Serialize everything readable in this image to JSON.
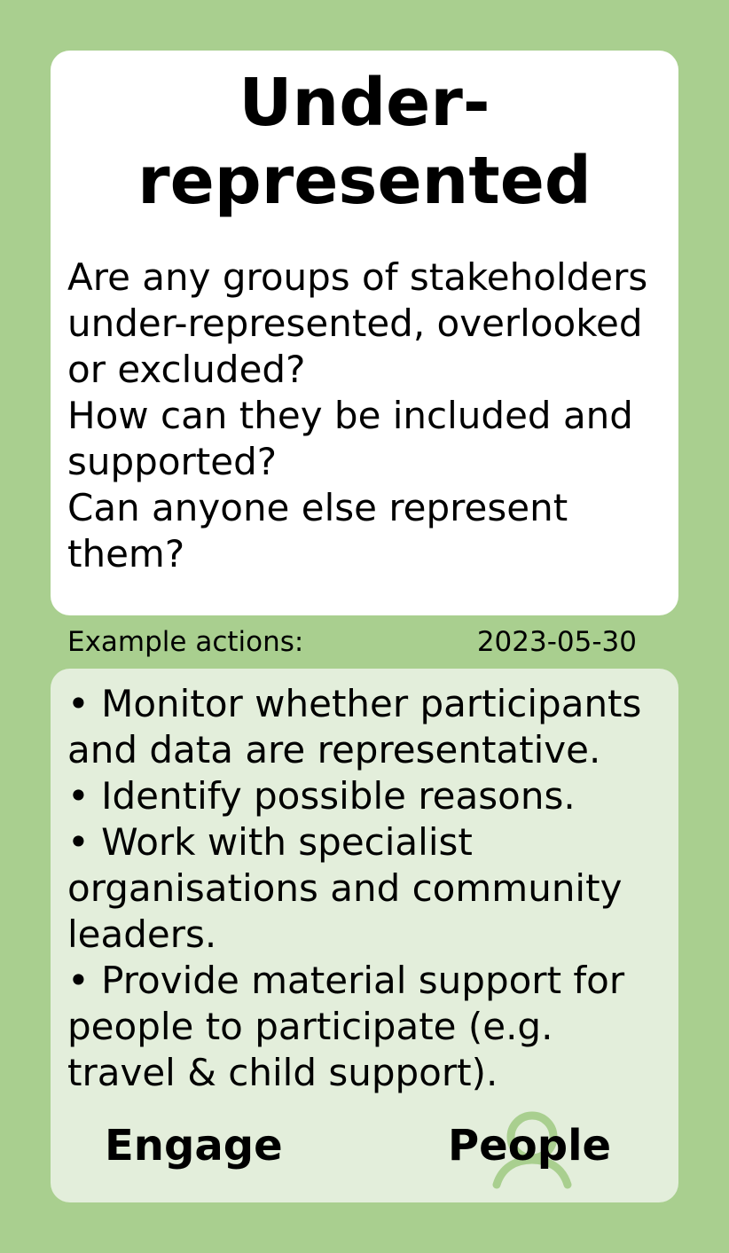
{
  "card": {
    "title_line1": "Under-",
    "title_line2": "represented",
    "questions": [
      "Are any groups of stakeholders under-represented, overlooked or excluded?",
      "How can they be included and supported?",
      "Can anyone else represent them?"
    ],
    "example_label": "Example actions:",
    "date": "2023-05-30",
    "actions": [
      "• Monitor whether participants and data are representative.",
      "• Identify possible reasons.",
      "• Work with specialist organisations and community leaders.",
      "• Provide material support for people to participate (e.g. travel & child support)."
    ],
    "footer_left": "Engage",
    "footer_right": "People",
    "icon": "person-icon"
  },
  "colors": {
    "background": "#a9cf8f",
    "top_card": "#ffffff",
    "bottom_card": "#e3eedb",
    "icon": "#a9cf8f"
  }
}
